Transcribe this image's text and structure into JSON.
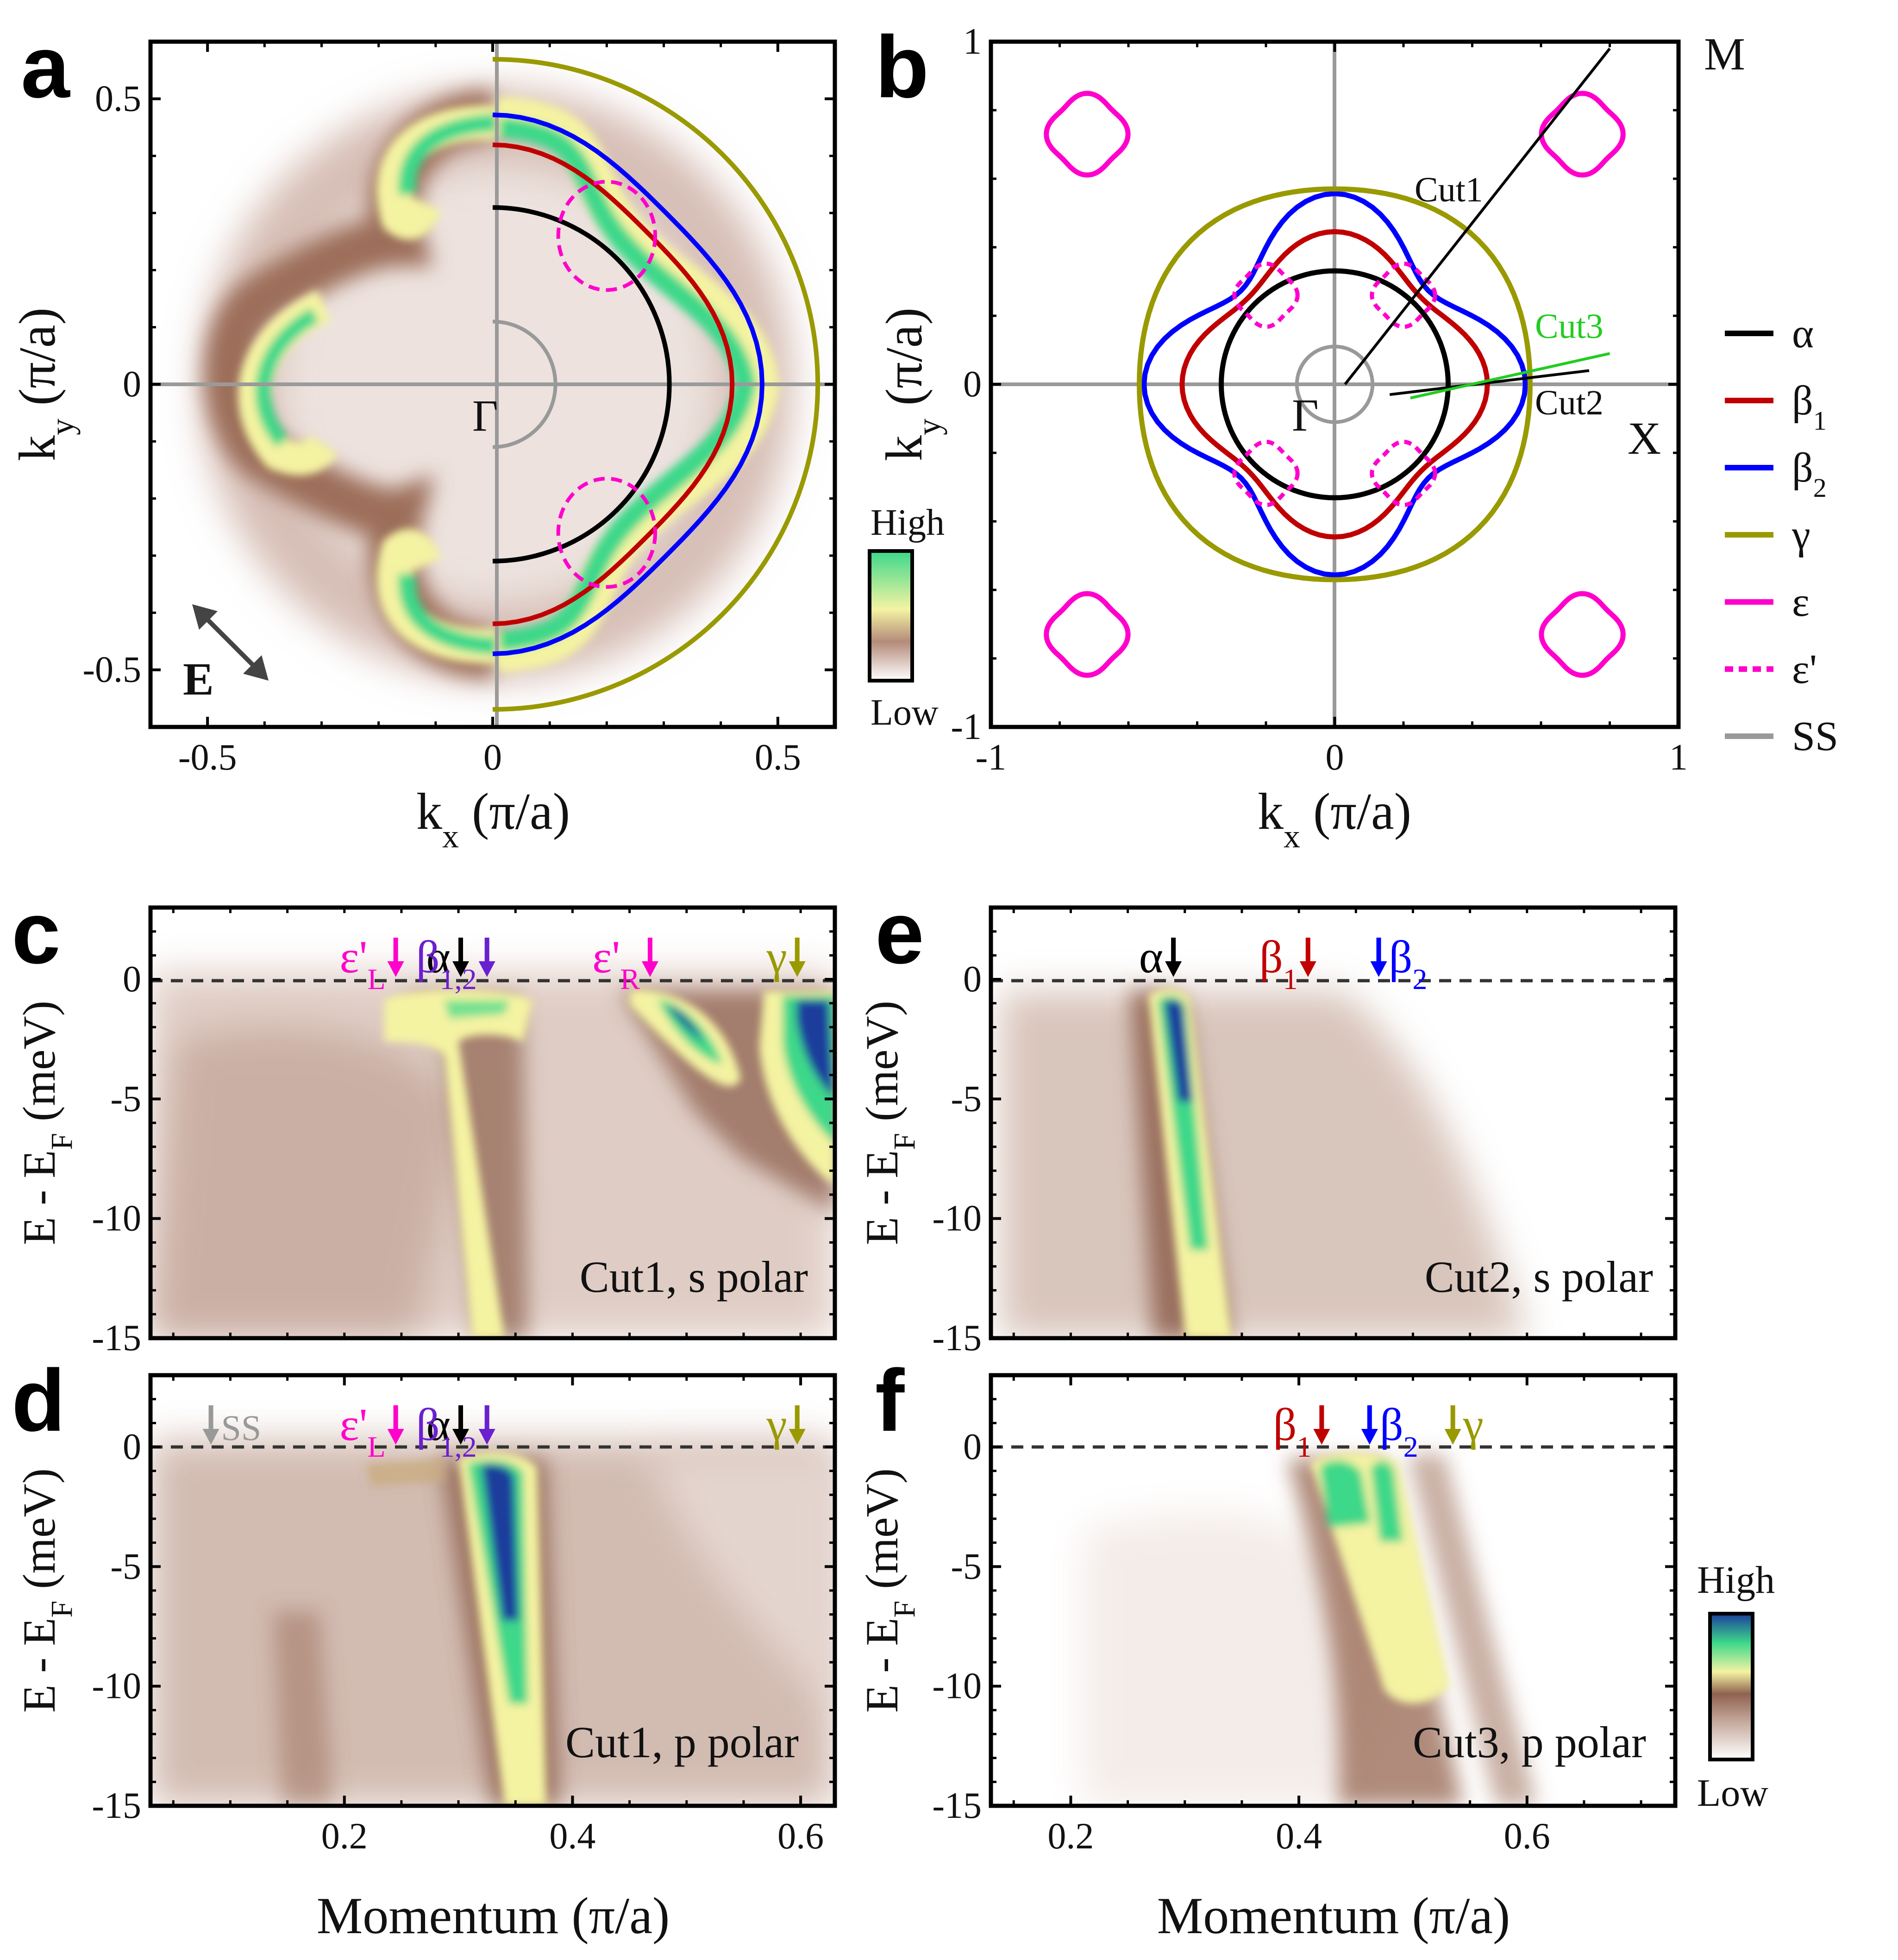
{
  "figure": {
    "colorbar_high": "High",
    "colorbar_low": "Low",
    "colors": {
      "alpha": "#000000",
      "beta1": "#c00000",
      "beta2": "#0000ff",
      "gamma": "#999900",
      "epsilon": "#ff00cc",
      "ss": "#999999",
      "cut3": "#22cc22",
      "cmap": [
        "#ffffff",
        "#d9c5bd",
        "#9c6e5a",
        "#f4f3a2",
        "#3dd88a",
        "#1a3d9c"
      ]
    }
  },
  "chart_data": [
    {
      "panel": "a",
      "type": "heatmap",
      "xlabel": "k",
      "xlabel_sub": "x",
      "xlabel_unit": " (π/a)",
      "ylabel": "k",
      "ylabel_sub": "y",
      "ylabel_unit": " (π/a)",
      "xlim": [
        -0.6,
        0.6
      ],
      "ylim": [
        -0.6,
        0.6
      ],
      "xticks": [
        -0.5,
        0,
        0.5
      ],
      "xtick_labels": [
        "-0.5",
        "0",
        "0.5"
      ],
      "yticks": [
        -0.5,
        0,
        0.5
      ],
      "ytick_labels": [
        "-0.5",
        "0",
        "0.5"
      ],
      "annotations": {
        "gamma_point": "Γ",
        "polarization": "E"
      },
      "fermi_surface_radii": {
        "ss": 0.11,
        "alpha": 0.31,
        "beta1": 0.4,
        "beta2": 0.45,
        "gamma": 0.57
      }
    },
    {
      "panel": "b",
      "type": "line",
      "xlabel": "k",
      "xlabel_sub": "x",
      "xlabel_unit": " (π/a)",
      "ylabel": "k",
      "ylabel_sub": "y",
      "ylabel_unit": " (π/a)",
      "xlim": [
        -1,
        1
      ],
      "ylim": [
        -1,
        1
      ],
      "xticks": [
        -1,
        0,
        1
      ],
      "xtick_labels": [
        "-1",
        "0",
        "1"
      ],
      "yticks": [
        -1,
        0,
        1
      ],
      "ytick_labels": [
        "-1",
        "0",
        "1"
      ],
      "annotations": {
        "gamma_point": "Γ",
        "m_point": "M",
        "x_point": "X",
        "cut1": "Cut1",
        "cut2": "Cut2",
        "cut3": "Cut3"
      },
      "cuts": {
        "cut1": {
          "from": [
            0.03,
            0.0
          ],
          "to": [
            0.8,
            0.98
          ]
        },
        "cut2": {
          "from": [
            0.16,
            -0.03
          ],
          "to": [
            0.74,
            0.04
          ]
        },
        "cut3": {
          "from": [
            0.22,
            -0.04
          ],
          "to": [
            0.8,
            0.09
          ]
        }
      },
      "series": [
        {
          "name": "α",
          "key": "alpha",
          "radius": 0.33,
          "warp": 0.0
        },
        {
          "name": "β",
          "sub": "1",
          "key": "beta1",
          "radius": 0.4,
          "warp": 0.11
        },
        {
          "name": "β",
          "sub": "2",
          "key": "beta2",
          "radius": 0.47,
          "warp": 0.18
        },
        {
          "name": "γ",
          "key": "gamma",
          "radius": 0.58,
          "warp": -0.02
        },
        {
          "name": "ε",
          "key": "epsilon",
          "pockets": [
            [
              -0.72,
              0.73
            ],
            [
              0.72,
              0.73
            ],
            [
              -0.72,
              -0.73
            ],
            [
              0.72,
              -0.73
            ]
          ],
          "radius": 0.11
        },
        {
          "name": "ε'",
          "key": "epsilon_prime",
          "pockets": [
            [
              -0.2,
              0.26
            ],
            [
              0.2,
              0.26
            ],
            [
              -0.2,
              -0.26
            ],
            [
              0.2,
              -0.26
            ]
          ],
          "radius": 0.085
        },
        {
          "name": "SS",
          "key": "ss",
          "radius": 0.11
        }
      ]
    },
    {
      "panel": "c",
      "type": "heatmap",
      "ylabel": "E - E",
      "ylabel_sub": "F",
      "ylabel_unit": " (meV)",
      "xlim": [
        0.03,
        0.63
      ],
      "ylim": [
        -15,
        3
      ],
      "yticks": [
        0,
        -5,
        -10,
        -15
      ],
      "ytick_labels": [
        "0",
        "-5",
        "-10",
        "-15"
      ],
      "caption": "Cut1, s polar",
      "markers": [
        {
          "label": "ε'",
          "sub": "L",
          "k": 0.245,
          "key": "epsilon"
        },
        {
          "label": "α",
          "k": 0.302,
          "key": "alpha"
        },
        {
          "label": "β",
          "sub": "1,2",
          "k": 0.325,
          "key": "purple"
        },
        {
          "label": "ε'",
          "sub": "R",
          "k": 0.468,
          "key": "epsilon"
        },
        {
          "label": "γ",
          "k": 0.597,
          "key": "gamma"
        }
      ],
      "bands": [
        {
          "k_at_EF": 0.3,
          "k_bottom": 0.37,
          "intensity": "medium"
        },
        {
          "k_at_EF": 0.47,
          "k_bottom": 0.55,
          "intensity": "high"
        },
        {
          "k_at_EF": 0.6,
          "k_bottom": 0.64,
          "intensity": "very_high"
        }
      ]
    },
    {
      "panel": "d",
      "type": "heatmap",
      "xlabel": "Momentum (π/a)",
      "ylabel": "E - E",
      "ylabel_sub": "F",
      "ylabel_unit": " (meV)",
      "xlim": [
        0.03,
        0.63
      ],
      "ylim": [
        -15,
        3
      ],
      "xticks": [
        0.2,
        0.4,
        0.6
      ],
      "xtick_labels": [
        "0.2",
        "0.4",
        "0.6"
      ],
      "yticks": [
        0,
        -5,
        -10,
        -15
      ],
      "ytick_labels": [
        "0",
        "-5",
        "-10",
        "-15"
      ],
      "caption": "Cut1, p polar",
      "markers": [
        {
          "label": "SS",
          "k": 0.083,
          "key": "ss",
          "arrow_left": true
        },
        {
          "label": "ε'",
          "sub": "L",
          "k": 0.245,
          "key": "epsilon"
        },
        {
          "label": "α",
          "k": 0.302,
          "key": "alpha"
        },
        {
          "label": "β",
          "sub": "1,2",
          "k": 0.325,
          "key": "purple"
        },
        {
          "label": "γ",
          "k": 0.597,
          "key": "gamma"
        }
      ],
      "bands": [
        {
          "k_at_EF": 0.33,
          "k_bottom": 0.37,
          "intensity": "very_high"
        }
      ]
    },
    {
      "panel": "e",
      "type": "heatmap",
      "ylabel": "E - E",
      "ylabel_sub": "F",
      "ylabel_unit": " (meV)",
      "xlim": [
        0.13,
        0.73
      ],
      "ylim": [
        -15,
        3
      ],
      "yticks": [
        0,
        -5,
        -10,
        -15
      ],
      "ytick_labels": [
        "0",
        "-5",
        "-10",
        "-15"
      ],
      "caption": "Cut2, s polar",
      "markers": [
        {
          "label": "α",
          "k": 0.29,
          "key": "alpha"
        },
        {
          "label": "β",
          "sub": "1",
          "k": 0.408,
          "key": "beta1"
        },
        {
          "label": "β",
          "sub": "2",
          "k": 0.47,
          "key": "beta2",
          "arrow_left": true
        }
      ],
      "bands": [
        {
          "k_at_EF": 0.29,
          "k_bottom": 0.33,
          "intensity": "high"
        }
      ]
    },
    {
      "panel": "f",
      "type": "heatmap",
      "xlabel": "Momentum (π/a)",
      "ylabel": "E - E",
      "ylabel_sub": "F",
      "ylabel_unit": " (meV)",
      "xlim": [
        0.13,
        0.73
      ],
      "ylim": [
        -15,
        3
      ],
      "xticks": [
        0.2,
        0.4,
        0.6
      ],
      "xtick_labels": [
        "0.2",
        "0.4",
        "0.6"
      ],
      "yticks": [
        0,
        -5,
        -10,
        -15
      ],
      "ytick_labels": [
        "0",
        "-5",
        "-10",
        "-15"
      ],
      "caption": "Cut3, p polar",
      "markers": [
        {
          "label": "β",
          "sub": "1",
          "k": 0.42,
          "key": "beta1"
        },
        {
          "label": "β",
          "sub": "2",
          "k": 0.462,
          "key": "beta2",
          "arrow_left": true
        },
        {
          "label": "γ",
          "k": 0.535,
          "key": "gamma",
          "arrow_left": true
        }
      ],
      "bands": [
        {
          "k_at_EF": 0.43,
          "k_bottom": 0.49,
          "intensity": "high"
        },
        {
          "k_at_EF": 0.46,
          "k_bottom": 0.52,
          "intensity": "high"
        },
        {
          "k_at_EF": 0.54,
          "k_bottom": 0.61,
          "intensity": "low"
        }
      ]
    }
  ]
}
